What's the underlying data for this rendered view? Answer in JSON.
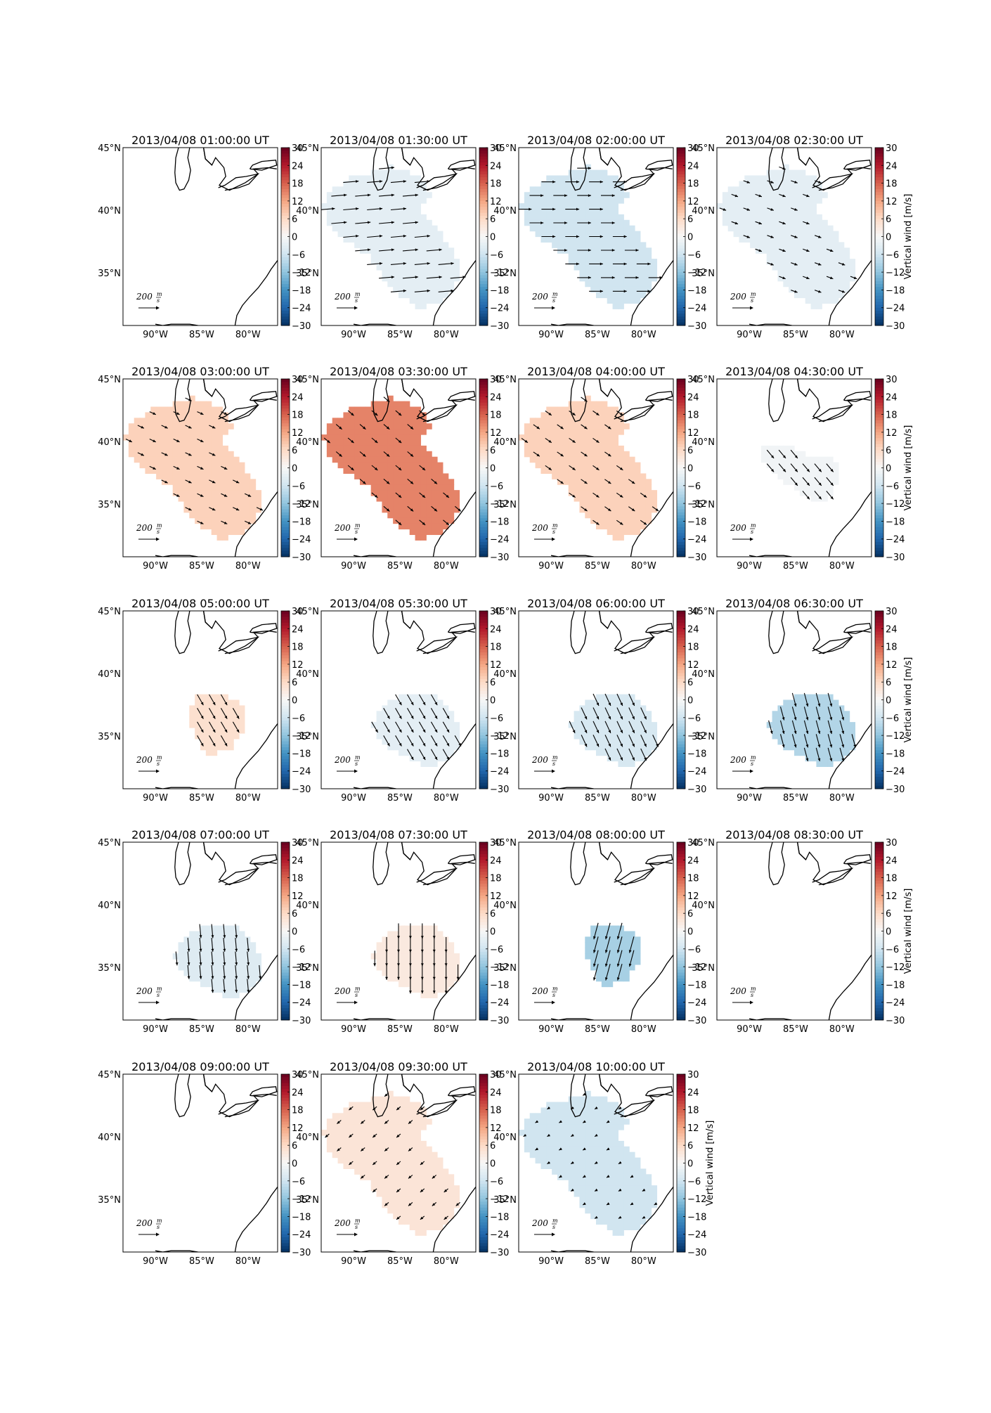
{
  "figure": {
    "colorbar_label": "Vertical wind [m/s]",
    "colorbar_ticks": [
      "30",
      "24",
      "18",
      "12",
      "6",
      "0",
      "−6",
      "−12",
      "−18",
      "−24",
      "−30"
    ],
    "colormap": [
      "#053061",
      "#2166ac",
      "#4393c3",
      "#92c5de",
      "#d1e5f0",
      "#f7f7f7",
      "#fddbc7",
      "#f4a582",
      "#d6604d",
      "#b2182b",
      "#67001f"
    ],
    "lon_ticks": [
      "90°W",
      "85°W",
      "80°W"
    ],
    "lat_ticks": [
      "45°N",
      "40°N",
      "35°N"
    ],
    "arrow_scale_label": "200",
    "arrow_scale_unit_num": "m",
    "arrow_scale_unit_den": "s"
  },
  "chart_data": [
    {
      "type": "heatmap",
      "title": "2013/04/08 01:00:00 UT",
      "mean_vertical_wind_ms": null,
      "region": "none",
      "arrow_dir": null,
      "arrow_len": 0
    },
    {
      "type": "heatmap",
      "title": "2013/04/08 01:30:00 UT",
      "mean_vertical_wind_ms": -3,
      "region": "wide",
      "arrow_dir": 5,
      "arrow_len": 1.0
    },
    {
      "type": "heatmap",
      "title": "2013/04/08 02:00:00 UT",
      "mean_vertical_wind_ms": -6,
      "region": "wide",
      "arrow_dir": 0,
      "arrow_len": 0.9
    },
    {
      "type": "heatmap",
      "title": "2013/04/08 02:30:00 UT",
      "mean_vertical_wind_ms": -3,
      "region": "wide",
      "arrow_dir": -20,
      "arrow_len": 0.45
    },
    {
      "type": "heatmap",
      "title": "2013/04/08 03:00:00 UT",
      "mean_vertical_wind_ms": 7,
      "region": "wide",
      "arrow_dir": -25,
      "arrow_len": 0.45
    },
    {
      "type": "heatmap",
      "title": "2013/04/08 03:30:00 UT",
      "mean_vertical_wind_ms": 15,
      "region": "wide",
      "arrow_dir": -40,
      "arrow_len": 0.5
    },
    {
      "type": "heatmap",
      "title": "2013/04/08 04:00:00 UT",
      "mean_vertical_wind_ms": 7,
      "region": "wide",
      "arrow_dir": -35,
      "arrow_len": 0.5
    },
    {
      "type": "heatmap",
      "title": "2013/04/08 04:30:00 UT",
      "mean_vertical_wind_ms": -1,
      "region": "band",
      "arrow_dir": -50,
      "arrow_len": 0.7
    },
    {
      "type": "heatmap",
      "title": "2013/04/08 05:00:00 UT",
      "mean_vertical_wind_ms": 5,
      "region": "small",
      "arrow_dir": -60,
      "arrow_len": 0.8
    },
    {
      "type": "heatmap",
      "title": "2013/04/08 05:30:00 UT",
      "mean_vertical_wind_ms": -3,
      "region": "medium",
      "arrow_dir": -60,
      "arrow_len": 0.8
    },
    {
      "type": "heatmap",
      "title": "2013/04/08 06:00:00 UT",
      "mean_vertical_wind_ms": -5,
      "region": "medium",
      "arrow_dir": -65,
      "arrow_len": 0.85
    },
    {
      "type": "heatmap",
      "title": "2013/04/08 06:30:00 UT",
      "mean_vertical_wind_ms": -9,
      "region": "medium",
      "arrow_dir": -75,
      "arrow_len": 0.9
    },
    {
      "type": "heatmap",
      "title": "2013/04/08 07:00:00 UT",
      "mean_vertical_wind_ms": -4,
      "region": "medium",
      "arrow_dir": -85,
      "arrow_len": 0.9
    },
    {
      "type": "heatmap",
      "title": "2013/04/08 07:30:00 UT",
      "mean_vertical_wind_ms": 3,
      "region": "medium",
      "arrow_dir": -90,
      "arrow_len": 1.0
    },
    {
      "type": "heatmap",
      "title": "2013/04/08 08:00:00 UT",
      "mean_vertical_wind_ms": -10,
      "region": "small",
      "arrow_dir": -105,
      "arrow_len": 1.1
    },
    {
      "type": "heatmap",
      "title": "2013/04/08 08:30:00 UT",
      "mean_vertical_wind_ms": null,
      "region": "none",
      "arrow_dir": null,
      "arrow_len": 0
    },
    {
      "type": "heatmap",
      "title": "2013/04/08 09:00:00 UT",
      "mean_vertical_wind_ms": null,
      "region": "none",
      "arrow_dir": null,
      "arrow_len": 0
    },
    {
      "type": "heatmap",
      "title": "2013/04/08 09:30:00 UT",
      "mean_vertical_wind_ms": 4,
      "region": "wide",
      "arrow_dir": -140,
      "arrow_len": 0.35
    },
    {
      "type": "heatmap",
      "title": "2013/04/08 10:00:00 UT",
      "mean_vertical_wind_ms": -6,
      "region": "wide",
      "arrow_dir": -150,
      "arrow_len": 0.2
    }
  ]
}
